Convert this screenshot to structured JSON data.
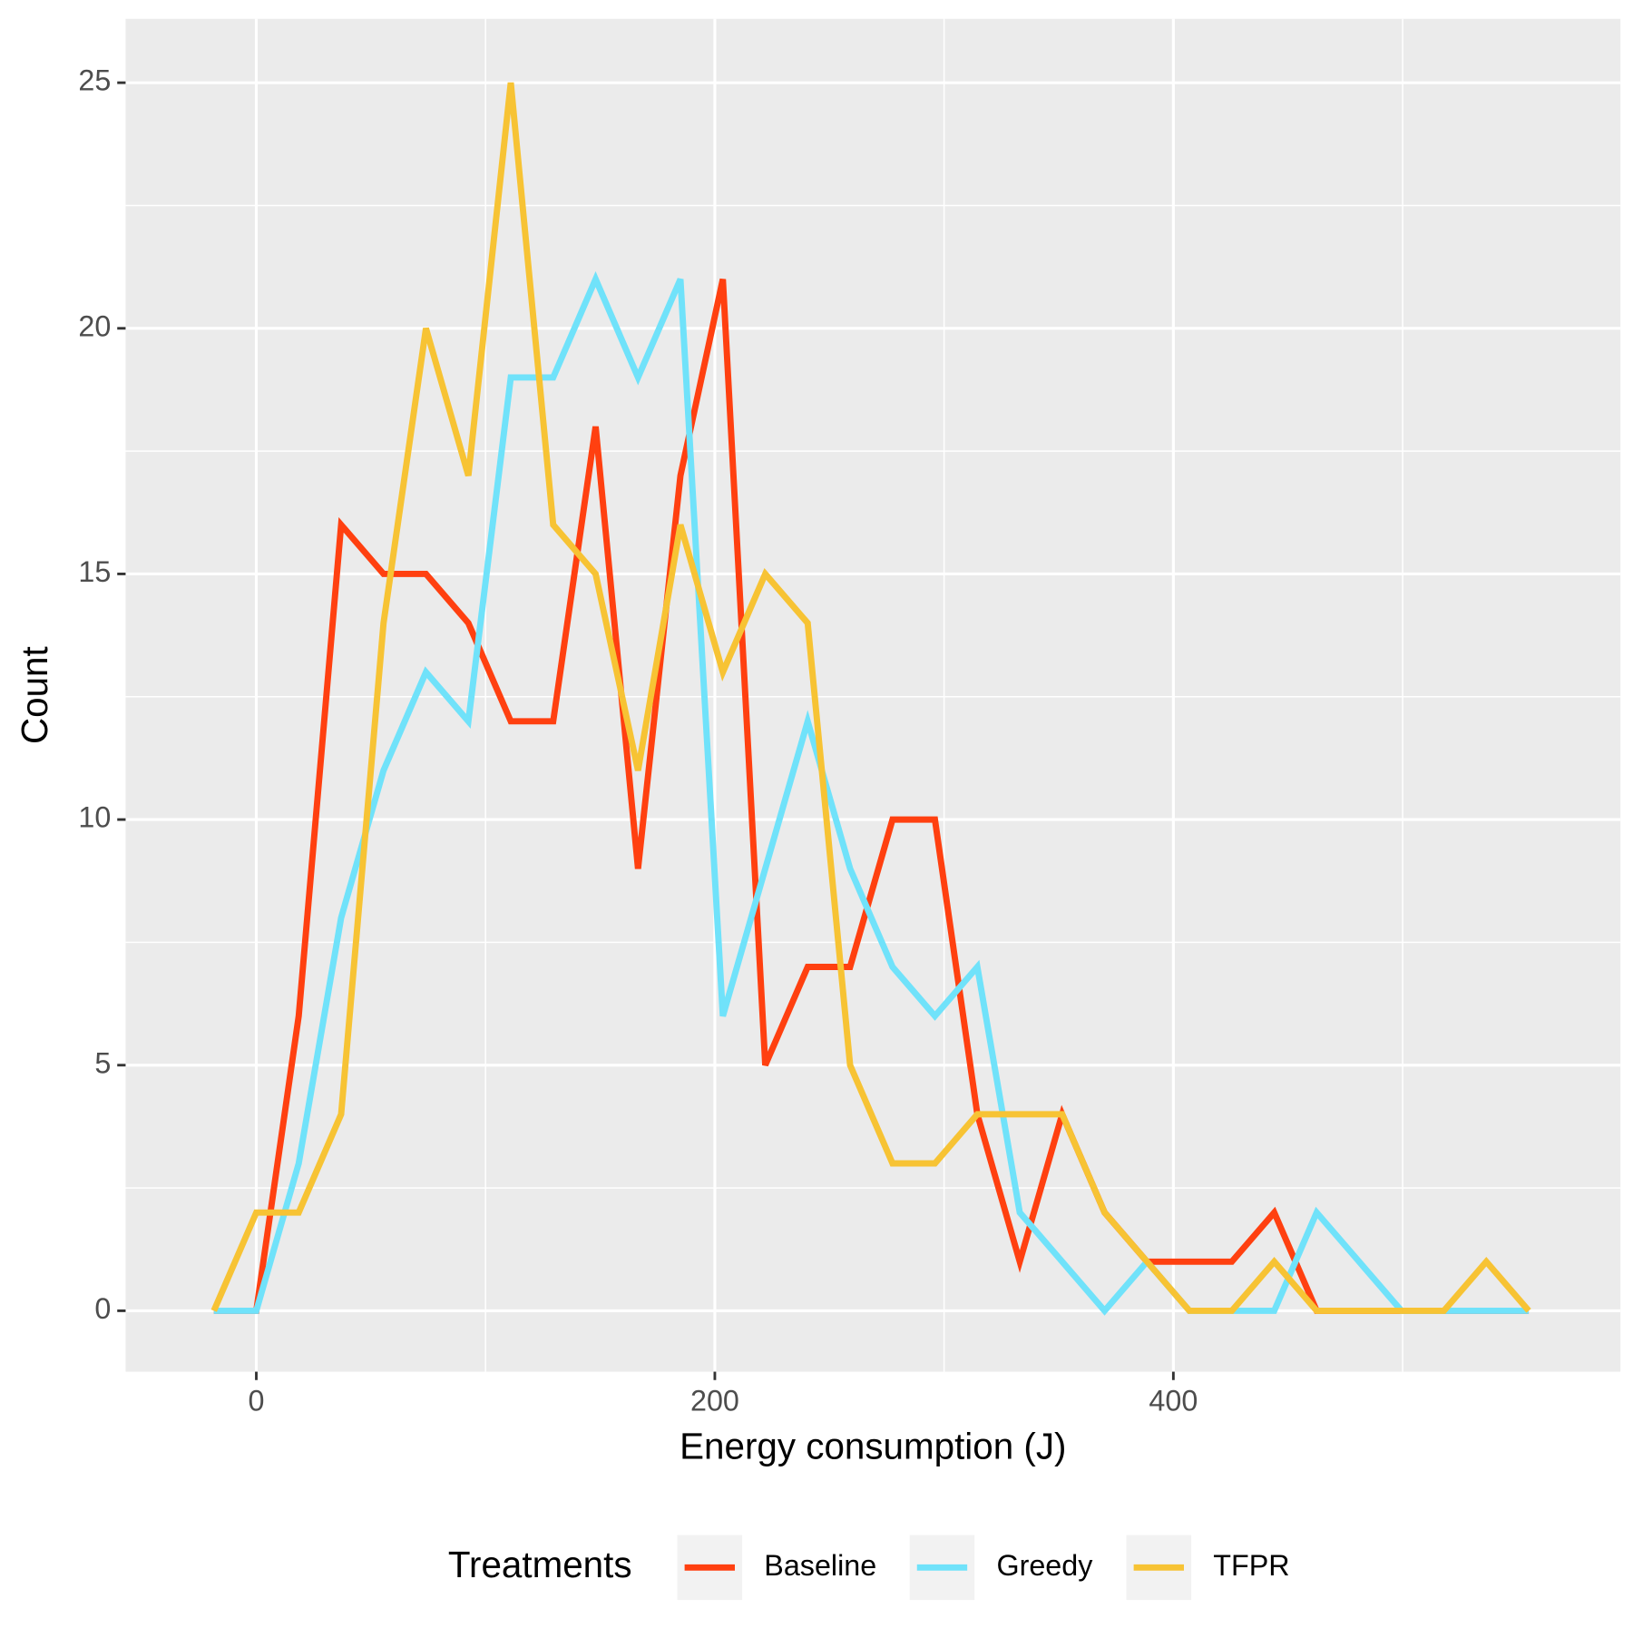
{
  "chart_data": {
    "type": "line",
    "x_label": "Energy consumption (J)",
    "y_label": "Count",
    "legend_title": "Treatments",
    "legend_position": "bottom",
    "x": [
      -18.5,
      0,
      18.5,
      37,
      55.5,
      74,
      92.5,
      111,
      129.5,
      148,
      166.5,
      185,
      203.5,
      222,
      240.5,
      259,
      277.5,
      296,
      314.5,
      333,
      351.5,
      370,
      388.5,
      407,
      425.5,
      444,
      462.5,
      481,
      499.5,
      518,
      536.5,
      555
    ],
    "series": [
      {
        "name": "Baseline",
        "color": "#ff4010",
        "values": [
          0,
          0,
          6,
          16,
          15,
          15,
          14,
          12,
          12,
          18,
          9,
          17,
          21,
          5,
          7,
          7,
          10,
          10,
          4,
          1,
          4,
          2,
          1,
          1,
          1,
          2,
          0,
          0,
          0,
          0,
          0,
          0
        ]
      },
      {
        "name": "Greedy",
        "color": "#70e2fa",
        "values": [
          0,
          0,
          3,
          8,
          11,
          13,
          12,
          19,
          19,
          21,
          19,
          21,
          6,
          9,
          12,
          9,
          7,
          6,
          7,
          2,
          1,
          0,
          1,
          0,
          0,
          0,
          2,
          1,
          0,
          0,
          0,
          0
        ]
      },
      {
        "name": "TFPR",
        "color": "#f7c334",
        "values": [
          0,
          2,
          2,
          4,
          14,
          20,
          17,
          25,
          16,
          15,
          11,
          16,
          13,
          15,
          14,
          5,
          3,
          3,
          4,
          4,
          4,
          2,
          1,
          0,
          0,
          1,
          0,
          0,
          0,
          0,
          1,
          0
        ]
      }
    ],
    "xlim": [
      -57,
      595
    ],
    "ylim": [
      -1.24,
      26.3
    ],
    "xticks": [
      0,
      200,
      400
    ],
    "yticks": [
      0,
      5,
      10,
      15,
      20,
      25
    ],
    "x_minor_grid": [
      100,
      300,
      500
    ],
    "y_minor_grid": [
      2.5,
      7.5,
      12.5,
      17.5,
      22.5
    ],
    "grid": true
  }
}
